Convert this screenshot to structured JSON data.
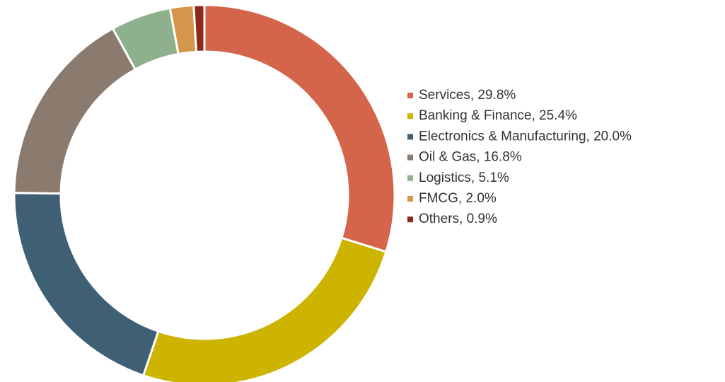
{
  "chart_data": {
    "type": "donut",
    "categories": [
      "Services, 29.8%",
      "Banking & Finance, 25.4%",
      "Electronics & Manufacturing, 20.0%",
      "Oil & Gas, 16.8%",
      "Logistics, 5.1%",
      "FMCG, 2.0%",
      "Others, 0.9%"
    ],
    "values": [
      29.8,
      25.4,
      20.0,
      16.8,
      5.1,
      2.0,
      0.9
    ],
    "colors": [
      "#d4644a",
      "#cdb400",
      "#3f5f75",
      "#8b7b6e",
      "#8fb08c",
      "#d4964a",
      "#8b2a1a"
    ],
    "legend": "right"
  }
}
